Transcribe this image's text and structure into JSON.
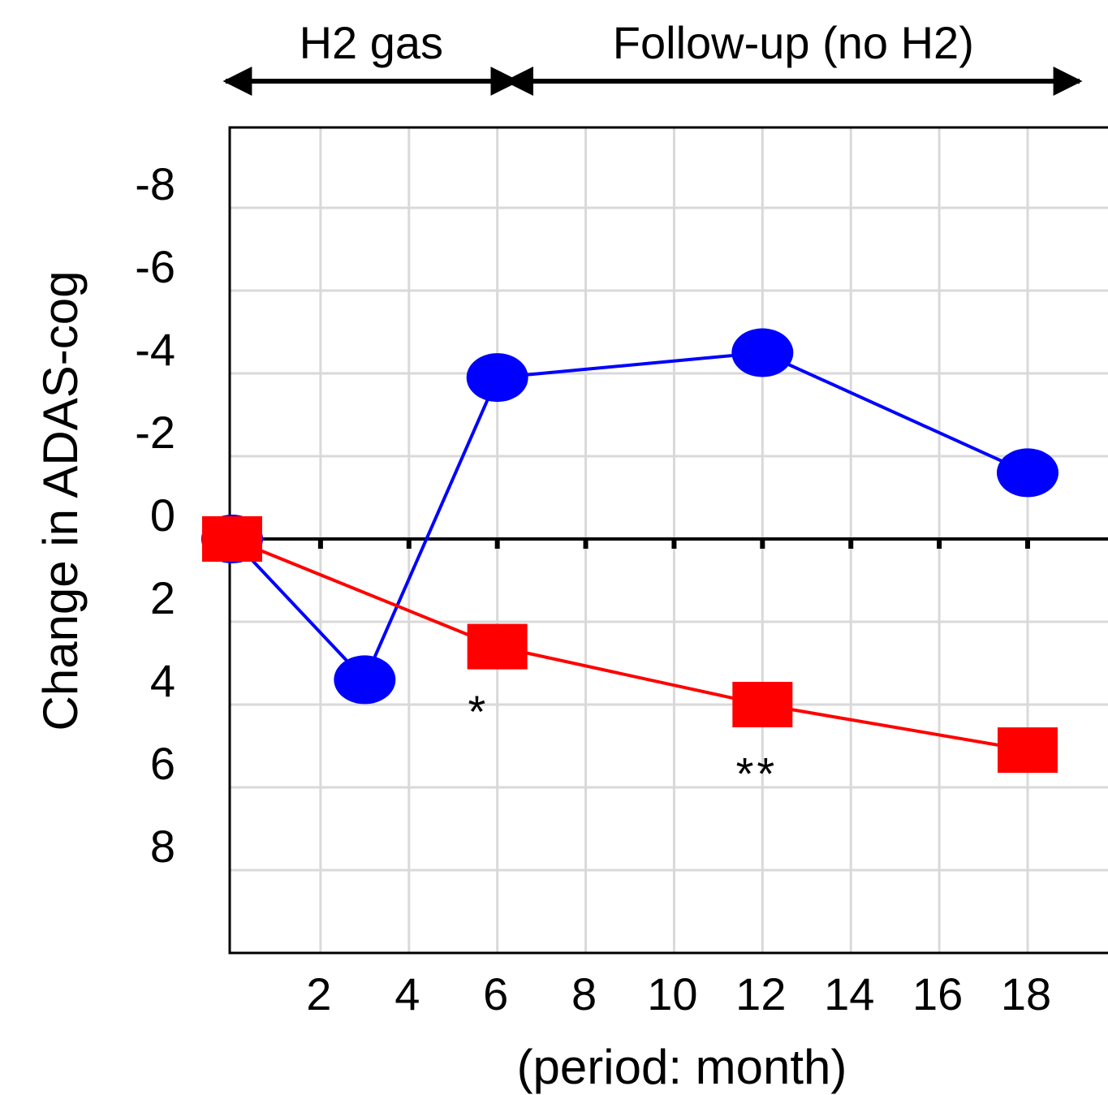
{
  "chart_data": {
    "type": "line",
    "ylabel": "Change in ADAS-cog",
    "xlabel": "(period: month)",
    "xlim": [
      0,
      20
    ],
    "ylim": [
      10,
      -10
    ],
    "y_inverted": true,
    "grid": true,
    "x_ticks": [
      2,
      4,
      6,
      8,
      10,
      12,
      14,
      16,
      18
    ],
    "y_ticks": [
      -8,
      -6,
      -4,
      -2,
      0,
      2,
      4,
      6,
      8
    ],
    "periods": [
      {
        "label": "H2 gas",
        "from": 0,
        "to": 6
      },
      {
        "label": "Follow-up (no H2)",
        "from": 6,
        "to": 19.5
      }
    ],
    "series": [
      {
        "marker": "circle",
        "color": "#0000ff",
        "x": [
          0,
          3,
          6,
          12,
          18
        ],
        "y": [
          0,
          3.4,
          -3.9,
          -4.5,
          -1.6
        ]
      },
      {
        "marker": "square",
        "color": "#ff0000",
        "x": [
          0,
          6,
          12,
          18
        ],
        "y": [
          0,
          2.6,
          4.0,
          5.1
        ]
      }
    ],
    "annotations": [
      {
        "text": "*",
        "x": 5.5,
        "y": 4.0
      },
      {
        "text": "**",
        "x": 11.8,
        "y": 5.5
      }
    ]
  }
}
